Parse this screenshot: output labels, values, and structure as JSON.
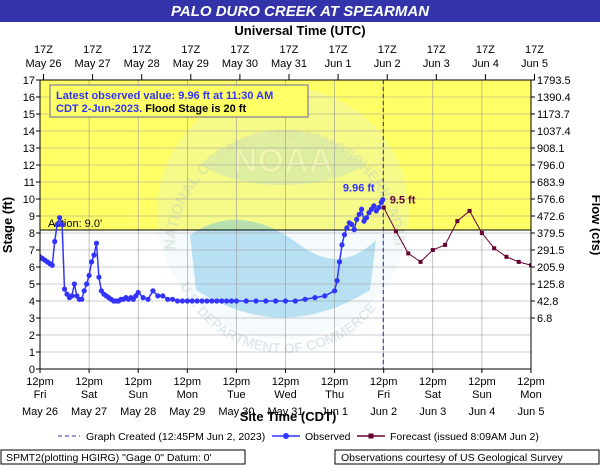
{
  "chart_data": {
    "type": "line",
    "title": "PALO DURO CREEK AT SPEARMAN",
    "top_axis_title": "Universal Time (UTC)",
    "xlabel": "Site Time (CDT)",
    "ylabel_left": "Stage (ft)",
    "ylabel_right": "Flow (cfs)",
    "ylim": [
      0,
      17
    ],
    "y_ticks": [
      0,
      1,
      2,
      3,
      4,
      5,
      6,
      7,
      8,
      9,
      10,
      11,
      12,
      13,
      14,
      15,
      16,
      17
    ],
    "x_range_days": [
      "2023-05-26 12:00",
      "2023-06-05 12:00"
    ],
    "bottom_ticks": [
      {
        "time": "12pm",
        "day": "Fri",
        "date": "May 26"
      },
      {
        "time": "12pm",
        "day": "Sat",
        "date": "May 27"
      },
      {
        "time": "12pm",
        "day": "Sun",
        "date": "May 28"
      },
      {
        "time": "12pm",
        "day": "Mon",
        "date": "May 29"
      },
      {
        "time": "12pm",
        "day": "Tue",
        "date": "May 30"
      },
      {
        "time": "12pm",
        "day": "Wed",
        "date": "May 31"
      },
      {
        "time": "12pm",
        "day": "Thu",
        "date": "Jun 1"
      },
      {
        "time": "12pm",
        "day": "Fri",
        "date": "Jun 2"
      },
      {
        "time": "12pm",
        "day": "Sat",
        "date": "Jun 3"
      },
      {
        "time": "12pm",
        "day": "Sun",
        "date": "Jun 4"
      },
      {
        "time": "12pm",
        "day": "Mon",
        "date": "Jun 5"
      }
    ],
    "top_ticks": [
      {
        "time": "17Z",
        "date": "May 26"
      },
      {
        "time": "17Z",
        "date": "May 27"
      },
      {
        "time": "17Z",
        "date": "May 28"
      },
      {
        "time": "17Z",
        "date": "May 29"
      },
      {
        "time": "17Z",
        "date": "May 30"
      },
      {
        "time": "17Z",
        "date": "May 31"
      },
      {
        "time": "17Z",
        "date": "Jun 1"
      },
      {
        "time": "17Z",
        "date": "Jun 2"
      },
      {
        "time": "17Z",
        "date": "Jun 3"
      },
      {
        "time": "17Z",
        "date": "Jun 4"
      },
      {
        "time": "17Z",
        "date": "Jun 5"
      }
    ],
    "right_ticks": [
      {
        "stage": 6,
        "flow": "6.8"
      },
      {
        "stage": 7,
        "flow": "42.8"
      },
      {
        "stage": 8,
        "flow": "125.8"
      },
      {
        "stage": 9,
        "flow": "205.9"
      },
      {
        "stage": 10,
        "flow": "291.5"
      },
      {
        "stage": 11,
        "flow": "379.5"
      },
      {
        "stage": 12,
        "flow": "472.6"
      },
      {
        "stage": 13,
        "flow": "576.6"
      },
      {
        "stage": 14,
        "flow": "683.9"
      },
      {
        "stage": 15,
        "flow": "796.0"
      },
      {
        "stage": 16,
        "flow": "908.1"
      },
      {
        "stage": 17,
        "flow": "1037.4"
      },
      {
        "stage": 18,
        "flow": "1173.7"
      },
      {
        "stage": 19,
        "flow": "1390.4"
      },
      {
        "stage": 20,
        "flow": "1793.5"
      }
    ],
    "action_stage": 9.0,
    "action_label": "Action: 9.0'",
    "flood_stage": 20,
    "graph_created_day": 6.99,
    "observed_label": "9.96 ft",
    "forecast_label": "9.5 ft",
    "series": [
      {
        "name": "Observed",
        "color": "#3333ff",
        "x": [
          0.0,
          0.05,
          0.1,
          0.15,
          0.2,
          0.25,
          0.3,
          0.35,
          0.4,
          0.45,
          0.5,
          0.55,
          0.6,
          0.65,
          0.7,
          0.75,
          0.8,
          0.85,
          0.9,
          0.95,
          1.0,
          1.05,
          1.1,
          1.15,
          1.2,
          1.25,
          1.3,
          1.35,
          1.4,
          1.45,
          1.5,
          1.55,
          1.6,
          1.65,
          1.7,
          1.75,
          1.8,
          1.85,
          1.9,
          1.95,
          2.0,
          2.1,
          2.2,
          2.3,
          2.4,
          2.5,
          2.6,
          2.7,
          2.8,
          2.9,
          3.0,
          3.1,
          3.2,
          3.3,
          3.4,
          3.5,
          3.6,
          3.7,
          3.8,
          3.9,
          4.0,
          4.2,
          4.4,
          4.6,
          4.8,
          5.0,
          5.2,
          5.4,
          5.6,
          5.8,
          6.0,
          6.05,
          6.1,
          6.15,
          6.2,
          6.25,
          6.3,
          6.35,
          6.4,
          6.45,
          6.5,
          6.55,
          6.6,
          6.65,
          6.7,
          6.75,
          6.8,
          6.85,
          6.9,
          6.95,
          6.98
        ],
        "values": [
          6.6,
          6.5,
          6.4,
          6.3,
          6.2,
          6.1,
          7.5,
          8.5,
          8.9,
          8.5,
          4.7,
          4.4,
          4.2,
          4.3,
          5.0,
          4.3,
          4.1,
          4.1,
          4.6,
          5.0,
          5.5,
          6.3,
          6.7,
          7.4,
          5.4,
          4.6,
          4.4,
          4.3,
          4.2,
          4.1,
          4.0,
          4.0,
          4.0,
          4.1,
          4.1,
          4.2,
          4.1,
          4.2,
          4.1,
          4.3,
          4.5,
          4.2,
          4.1,
          4.6,
          4.3,
          4.3,
          4.1,
          4.1,
          4.0,
          4.0,
          4.0,
          4.0,
          4.0,
          4.0,
          4.0,
          4.0,
          4.0,
          4.0,
          4.0,
          4.0,
          4.0,
          4.0,
          4.0,
          4.0,
          4.0,
          4.0,
          4.0,
          4.1,
          4.2,
          4.3,
          4.6,
          5.2,
          6.3,
          7.3,
          7.9,
          8.3,
          8.6,
          8.5,
          8.2,
          8.8,
          9.1,
          9.4,
          8.7,
          8.9,
          9.2,
          9.4,
          9.6,
          9.3,
          9.5,
          9.8,
          9.96
        ]
      },
      {
        "name": "Forecast",
        "color": "#660033",
        "x": [
          7.0,
          7.25,
          7.5,
          7.75,
          8.0,
          8.25,
          8.5,
          8.75,
          9.0,
          9.25,
          9.5,
          9.75,
          10.0
        ],
        "values": [
          9.5,
          8.1,
          6.8,
          6.3,
          7.0,
          7.3,
          8.7,
          9.3,
          8.0,
          7.1,
          6.6,
          6.3,
          6.1
        ]
      }
    ]
  },
  "annotation": {
    "line1": "Latest observed value:  9.96 ft at 11:30 AM",
    "line2_prefix": "CDT 2-Jun-2023.",
    "line2_suffix": "  Flood Stage is 20 ft"
  },
  "legend": {
    "graph_created": "Graph Created (12:45PM Jun 2, 2023)",
    "observed": "Observed",
    "forecast": "Forecast (issued 8:09AM Jun 2)"
  },
  "footer": {
    "left": "SPMT2(plotting HGIRG) \"Gage 0\" Datum: 0'",
    "right": "Observations courtesy of US Geological Survey"
  },
  "watermark": {
    "center": "NOAA",
    "ring": "NATIONAL OCEANIC AND ATMOSPHERIC ADMINISTRATION",
    "bottom_ring": "U.S. DEPARTMENT OF COMMERCE"
  },
  "colors": {
    "title_bar": "#3333aa",
    "flood_fill": "#ffff66",
    "below_fill": "#ffffff",
    "observed": "#3333ff",
    "forecast": "#660033",
    "action_line": "#000000"
  }
}
